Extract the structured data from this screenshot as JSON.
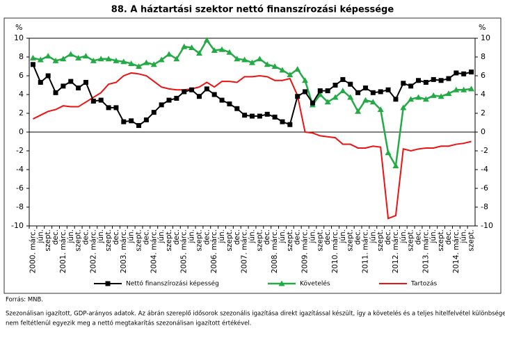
{
  "chart_data": {
    "type": "line",
    "title": "88. A háztartási szektor nettó finanszírozási képessége",
    "ylabel": "%",
    "categories": [
      "2000. márc.",
      "jún.",
      "szept.",
      "dec.",
      "2001. márc.",
      "jún.",
      "szept.",
      "dec.",
      "2002. márc.",
      "jún.",
      "szept.",
      "dec.",
      "2003. márc.",
      "jún.",
      "szept.",
      "dec.",
      "2004. márc.",
      "jún.",
      "szept.",
      "dec.",
      "2005. márc.",
      "jún.",
      "szept.",
      "dec.",
      "2006. márc.",
      "jún.",
      "szept.",
      "dec.",
      "2007. márc.",
      "jún.",
      "szept.",
      "dec.",
      "2008. márc.",
      "jún.",
      "szept.",
      "dec.",
      "2009. márc.",
      "jún.",
      "szept.",
      "dec.",
      "2010. márc.",
      "jún.",
      "szept.",
      "dec.",
      "2011. márc.",
      "jún.",
      "szept.",
      "dec.",
      "2012. márc.",
      "jún.",
      "szept.",
      "dec.",
      "2013. márc.",
      "jún.",
      "szept.",
      "dec.",
      "2014. márc.",
      "jún.",
      "szept."
    ],
    "series": [
      {
        "name": "Nettó finanszírozási képesség",
        "color": "#000000",
        "marker": "square",
        "values": [
          7.2,
          5.3,
          6.0,
          4.2,
          4.9,
          5.4,
          4.7,
          5.3,
          3.3,
          3.4,
          2.6,
          2.6,
          1.1,
          1.2,
          0.7,
          1.3,
          2.1,
          2.9,
          3.4,
          3.6,
          4.3,
          4.5,
          3.8,
          4.6,
          4.0,
          3.4,
          3.0,
          2.5,
          1.8,
          1.7,
          1.7,
          1.9,
          1.6,
          1.1,
          0.8,
          3.8,
          4.3,
          3.1,
          4.4,
          4.4,
          5.0,
          5.6,
          5.1,
          4.2,
          4.7,
          4.2,
          4.3,
          4.5,
          3.5,
          5.2,
          4.9,
          5.5,
          5.3,
          5.6,
          5.5,
          5.7,
          6.3,
          6.2,
          6.4
        ]
      },
      {
        "name": "Követelés",
        "color": "#22aa44",
        "marker": "triangle",
        "values": [
          7.9,
          7.7,
          8.1,
          7.6,
          7.8,
          8.3,
          7.9,
          8.1,
          7.6,
          7.8,
          7.8,
          7.6,
          7.5,
          7.3,
          7.0,
          7.4,
          7.2,
          7.7,
          8.3,
          7.8,
          9.1,
          9.0,
          8.4,
          9.8,
          8.7,
          8.8,
          8.5,
          7.8,
          7.7,
          7.4,
          7.8,
          7.2,
          7.0,
          6.6,
          6.1,
          6.7,
          5.5,
          2.9,
          4.0,
          3.2,
          3.7,
          4.4,
          3.7,
          2.2,
          3.4,
          3.2,
          2.4,
          -2.2,
          -3.6,
          2.6,
          3.5,
          3.7,
          3.5,
          3.9,
          3.8,
          4.1,
          4.5,
          4.5,
          4.6
        ]
      },
      {
        "name": "Tartozás",
        "color": "#ee1111",
        "marker": "none",
        "values": [
          1.4,
          1.8,
          2.2,
          2.4,
          2.8,
          2.7,
          2.7,
          3.2,
          3.7,
          4.2,
          5.1,
          5.3,
          6.0,
          6.3,
          6.2,
          6.0,
          5.4,
          4.8,
          4.6,
          4.5,
          4.5,
          4.6,
          4.8,
          5.3,
          4.8,
          5.4,
          5.4,
          5.3,
          5.9,
          5.9,
          6.0,
          5.9,
          5.5,
          5.5,
          5.7,
          3.9,
          0.0,
          -0.1,
          -0.4,
          -0.5,
          -0.6,
          -1.3,
          -1.3,
          -1.7,
          -1.7,
          -1.5,
          -1.6,
          -9.2,
          -8.9,
          -1.8,
          -2.0,
          -1.8,
          -1.7,
          -1.7,
          -1.5,
          -1.5,
          -1.3,
          -1.2,
          -1.0
        ]
      }
    ],
    "ylim": [
      -10,
      10
    ],
    "yticks": [
      -10,
      -8,
      -6,
      -4,
      -2,
      0,
      2,
      4,
      6,
      8,
      10
    ],
    "source": "Forrás: MNB.",
    "note": [
      "Szezonálisan igazított, GDP-arányos adatok. Az ábrán szereplő idősorok szezonális igazítása direkt igazítással készült, így a követelés és a teljes hitelfelvétel különbsége",
      "nem feltétlenül egyezik meg a nettó megtakarítás szezonálisan igazított értékével."
    ]
  }
}
